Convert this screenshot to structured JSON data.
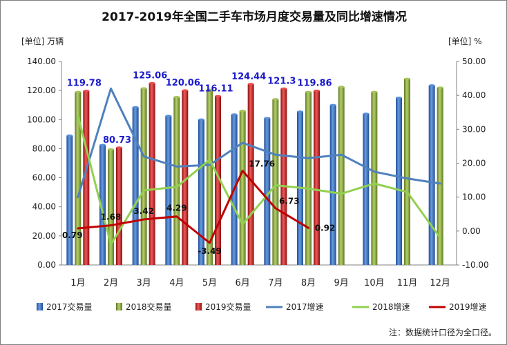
{
  "chart_data": {
    "type": "bar",
    "title": "2017-2019年全国二手车市场月度交易量及同比增速情况",
    "y_left_unit": "[单位]  万辆",
    "y_right_unit": "[单位]  %",
    "ylim_left": [
      0,
      140
    ],
    "ylim_right": [
      -10,
      50
    ],
    "y_left_ticks": [
      "0.00",
      "20.00",
      "40.00",
      "60.00",
      "80.00",
      "100.00",
      "120.00",
      "140.00"
    ],
    "y_right_ticks": [
      "-10.00",
      "0.00",
      "10.00",
      "20.00",
      "30.00",
      "40.00",
      "50.00"
    ],
    "categories": [
      "1月",
      "2月",
      "3月",
      "4月",
      "5月",
      "6月",
      "7月",
      "8月",
      "9月",
      "10月",
      "11月",
      "12月"
    ],
    "bar_series": [
      {
        "name": "2017交易量",
        "color": "#3d72c9",
        "values": [
          89,
          82.5,
          108.5,
          102.5,
          100,
          103.5,
          101,
          105.5,
          110,
          104,
          115,
          123.5
        ]
      },
      {
        "name": "2018交易量",
        "color": "#8cae3a",
        "values": [
          119,
          79.5,
          121.5,
          115.5,
          120.5,
          106,
          114,
          119,
          122.5,
          119,
          128,
          122
        ]
      },
      {
        "name": "2019交易量",
        "color": "#d42a2a",
        "values": [
          119.78,
          80.73,
          125.06,
          120.06,
          116.11,
          124.44,
          121.3,
          119.86
        ]
      }
    ],
    "bar_labels": [
      "119.78",
      "80.73",
      "125.06",
      "120.06",
      "116.11",
      "124.44",
      "121.3",
      "119.86"
    ],
    "line_series": [
      {
        "name": "2017增速",
        "color": "#4f81bd",
        "values": [
          10,
          42,
          22,
          19,
          19.5,
          26,
          22.5,
          21.5,
          22.5,
          17.5,
          15.5,
          14
        ]
      },
      {
        "name": "2018增速",
        "color": "#92d050",
        "values": [
          34,
          -4,
          12,
          13,
          21,
          2,
          13.5,
          12.5,
          11,
          14,
          11.5,
          -2
        ]
      },
      {
        "name": "2019增速",
        "color": "#c00000",
        "values": [
          0.79,
          1.68,
          3.42,
          4.29,
          -3.49,
          17.76,
          6.73,
          0.92
        ]
      }
    ],
    "line_labels": [
      "0.79",
      "1.68",
      "3.42",
      "4.29",
      "-3.49",
      "17.76",
      "6.73",
      "0.92"
    ],
    "legend_position": "bottom",
    "note": "注：数据统计口径为全口径。"
  }
}
